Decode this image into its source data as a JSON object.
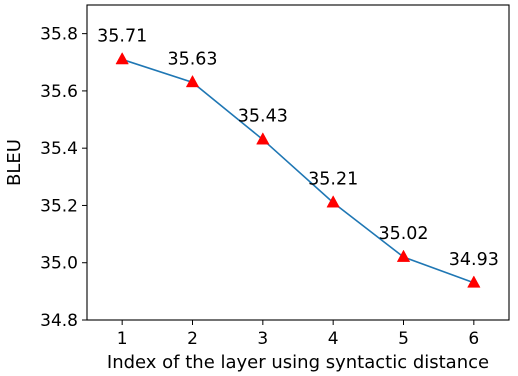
{
  "chart_data": {
    "type": "line",
    "title": "",
    "xlabel": "Index of the layer using syntactic distance",
    "ylabel": "BLEU",
    "x": [
      1,
      2,
      3,
      4,
      5,
      6
    ],
    "xticks": [
      "1",
      "2",
      "3",
      "4",
      "5",
      "6"
    ],
    "xlim": [
      0.5,
      6.5
    ],
    "ylim": [
      34.8,
      35.9
    ],
    "yticks": [
      "34.8",
      "35.0",
      "35.2",
      "35.4",
      "35.6",
      "35.8"
    ],
    "series": [
      {
        "values": [
          35.71,
          35.63,
          35.43,
          35.21,
          35.02,
          34.93
        ],
        "data_labels": [
          "35.71",
          "35.63",
          "35.43",
          "35.21",
          "35.02",
          "34.93"
        ],
        "line_color": "#1f77b4",
        "marker": "triangle",
        "marker_color": "#ff0000"
      }
    ],
    "grid": false,
    "legend": "none"
  }
}
